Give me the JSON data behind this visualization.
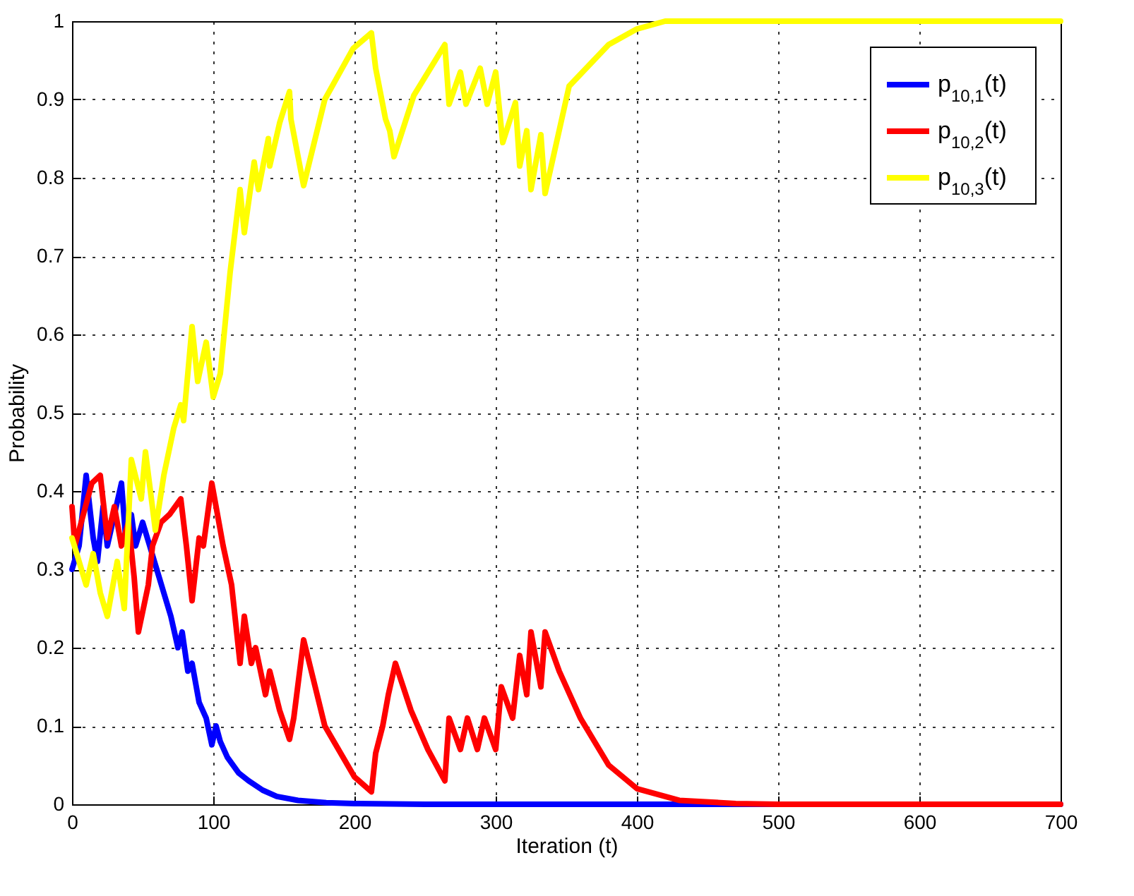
{
  "chart_data": {
    "type": "line",
    "xlabel": "Iteration (t)",
    "ylabel": "Probability",
    "series": [
      {
        "name": "p$_{10,1}$(t)",
        "color": "#0000ff",
        "x": [
          0,
          5,
          10,
          15,
          18,
          22,
          25,
          30,
          35,
          38,
          42,
          45,
          50,
          55,
          60,
          65,
          70,
          75,
          78,
          82,
          85,
          90,
          95,
          99,
          102,
          105,
          110,
          118,
          125,
          135,
          145,
          160,
          180,
          200,
          250,
          300,
          400,
          500,
          600,
          700
        ],
        "values": [
          0.3,
          0.33,
          0.42,
          0.34,
          0.31,
          0.38,
          0.33,
          0.37,
          0.41,
          0.34,
          0.37,
          0.33,
          0.36,
          0.33,
          0.3,
          0.27,
          0.24,
          0.2,
          0.22,
          0.17,
          0.18,
          0.13,
          0.11,
          0.076,
          0.1,
          0.08,
          0.06,
          0.04,
          0.03,
          0.018,
          0.01,
          0.005,
          0.002,
          0.001,
          0,
          0,
          0,
          0,
          0,
          0
        ]
      },
      {
        "name": "p$_{10,2}$(t)",
        "color": "#ff0000",
        "x": [
          0,
          2,
          8,
          14,
          20,
          25,
          30,
          35,
          40,
          44,
          47,
          54,
          57,
          63,
          69,
          77,
          81,
          85,
          90,
          93,
          99,
          103,
          107,
          113,
          119,
          122,
          127,
          130,
          137,
          140,
          147,
          154,
          157,
          164,
          179,
          200,
          212,
          215,
          220,
          224,
          229,
          240,
          252,
          264,
          267,
          275,
          280,
          287,
          292,
          300,
          304,
          312,
          317,
          322,
          325,
          332,
          335,
          345,
          360,
          380,
          400,
          430,
          470,
          500,
          700
        ],
        "values": [
          0.38,
          0.33,
          0.37,
          0.41,
          0.42,
          0.34,
          0.38,
          0.33,
          0.36,
          0.29,
          0.22,
          0.28,
          0.33,
          0.36,
          0.37,
          0.39,
          0.33,
          0.26,
          0.34,
          0.33,
          0.41,
          0.37,
          0.33,
          0.28,
          0.18,
          0.24,
          0.18,
          0.2,
          0.14,
          0.17,
          0.12,
          0.083,
          0.11,
          0.21,
          0.1,
          0.035,
          0.016,
          0.065,
          0.1,
          0.14,
          0.18,
          0.12,
          0.07,
          0.03,
          0.11,
          0.07,
          0.11,
          0.07,
          0.11,
          0.07,
          0.15,
          0.11,
          0.19,
          0.14,
          0.22,
          0.15,
          0.22,
          0.17,
          0.11,
          0.05,
          0.02,
          0.005,
          0.001,
          0,
          0
        ]
      },
      {
        "name": "p$_{10,3}$(t)",
        "color": "#ffff00",
        "x": [
          0,
          5,
          10,
          15,
          20,
          25,
          32,
          37,
          42,
          49,
          52,
          59,
          65,
          72,
          77,
          79,
          85,
          89,
          95,
          100,
          105,
          112,
          119,
          122,
          129,
          132,
          139,
          140,
          147,
          154,
          155,
          164,
          179,
          199,
          212,
          215,
          222,
          225,
          228,
          242,
          264,
          267,
          275,
          279,
          289,
          294,
          300,
          305,
          314,
          317,
          322,
          325,
          332,
          335,
          352,
          380,
          400,
          420,
          500,
          700
        ],
        "values": [
          0.34,
          0.31,
          0.28,
          0.32,
          0.27,
          0.24,
          0.31,
          0.25,
          0.44,
          0.39,
          0.45,
          0.35,
          0.42,
          0.48,
          0.51,
          0.49,
          0.61,
          0.54,
          0.59,
          0.52,
          0.55,
          0.68,
          0.785,
          0.73,
          0.82,
          0.785,
          0.85,
          0.815,
          0.87,
          0.91,
          0.875,
          0.79,
          0.9,
          0.965,
          0.985,
          0.94,
          0.875,
          0.86,
          0.827,
          0.905,
          0.97,
          0.894,
          0.935,
          0.894,
          0.94,
          0.894,
          0.935,
          0.845,
          0.896,
          0.815,
          0.86,
          0.785,
          0.855,
          0.78,
          0.917,
          0.97,
          0.99,
          1,
          1,
          1
        ]
      }
    ],
    "xlim": [
      0,
      700
    ],
    "xticks": [
      0,
      100,
      200,
      300,
      400,
      500,
      600,
      700
    ],
    "ylim": [
      0,
      1
    ],
    "yticks": [
      0,
      0.1,
      0.2,
      0.3,
      0.4,
      0.5,
      0.6,
      0.7,
      0.8,
      0.9,
      1
    ],
    "grid": true,
    "legend": "top right",
    "line_style": "solid",
    "marker": "none"
  }
}
